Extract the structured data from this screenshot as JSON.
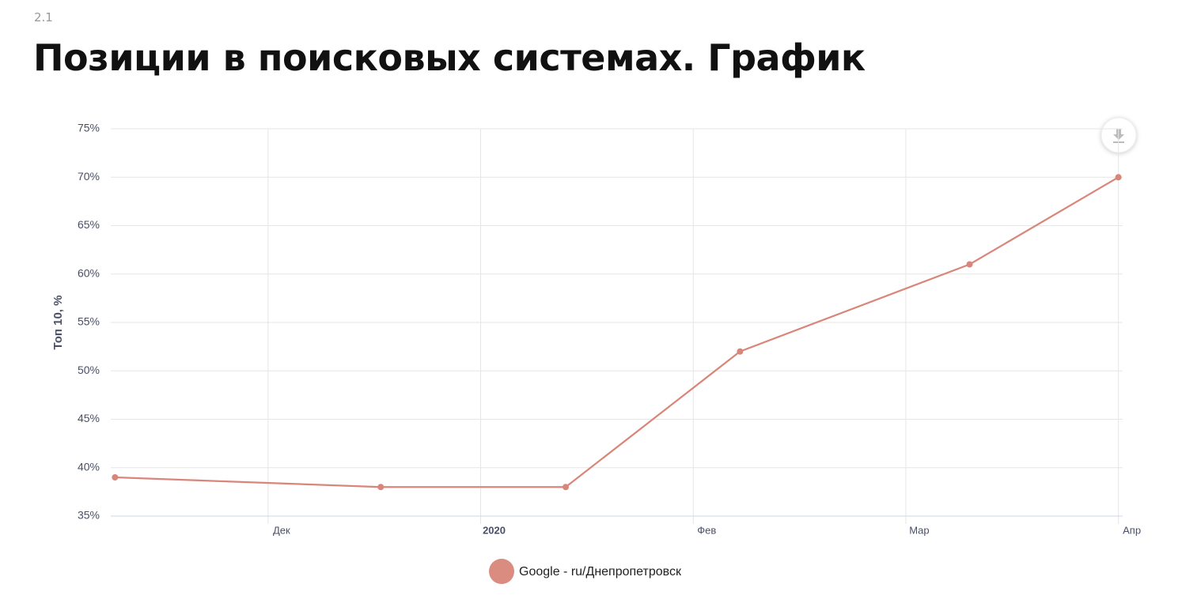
{
  "section": "2.1",
  "chart_data": {
    "type": "line",
    "title": "Позиции в поисковых системах. График",
    "y_label": "Топ 10, %",
    "x": [
      -0.72,
      0.53,
      1.4,
      2.22,
      3.3,
      4.0
    ],
    "xlim": [
      -0.74,
      4.02
    ],
    "xticks": [
      {
        "value": 0,
        "label": "Дек"
      },
      {
        "value": 1,
        "label": "2020"
      },
      {
        "value": 2,
        "label": "Фев"
      },
      {
        "value": 3,
        "label": "Мар"
      },
      {
        "value": 4,
        "label": "Апр"
      }
    ],
    "ylim": [
      35,
      75
    ],
    "yticks": [
      {
        "value": 35,
        "label": "35%"
      },
      {
        "value": 40,
        "label": "40%"
      },
      {
        "value": 45,
        "label": "45%"
      },
      {
        "value": 50,
        "label": "50%"
      },
      {
        "value": 55,
        "label": "55%"
      },
      {
        "value": 60,
        "label": "60%"
      },
      {
        "value": 65,
        "label": "65%"
      },
      {
        "value": 70,
        "label": "70%"
      },
      {
        "value": 75,
        "label": "75%"
      }
    ],
    "grid": true,
    "legend": "bottom",
    "series": [
      {
        "name": "Google - ru/Днепропетровск",
        "color": "#d9867a",
        "values": [
          39,
          38,
          38,
          52,
          61,
          70
        ]
      }
    ]
  }
}
